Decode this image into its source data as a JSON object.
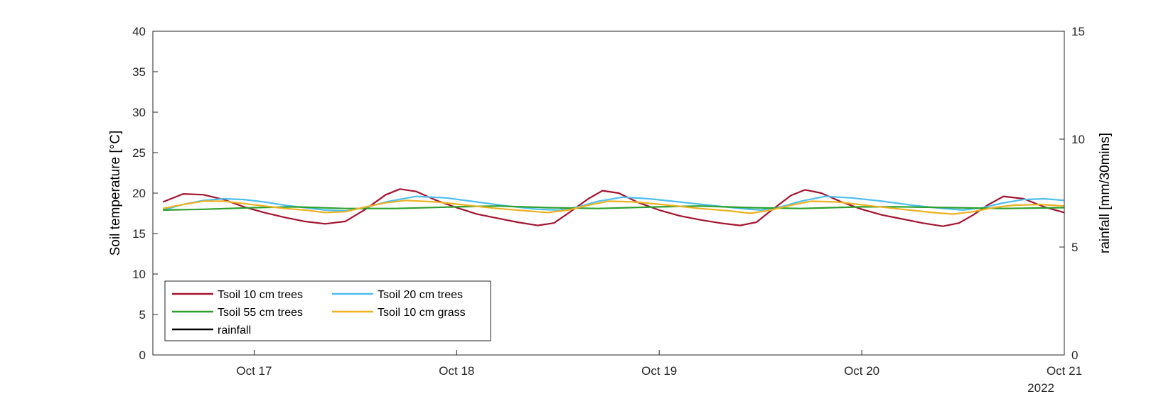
{
  "chart_data": {
    "type": "line",
    "ylabel_left": "Soil temperature [°C]",
    "ylabel_right": "rainfall [mm/30mins]",
    "ylim_left": [
      0,
      40
    ],
    "ylim_right": [
      0,
      15
    ],
    "yticks_left": [
      0,
      5,
      10,
      15,
      20,
      25,
      30,
      35,
      40
    ],
    "yticks_right": [
      0,
      5,
      10,
      15
    ],
    "xlim": [
      -0.5,
      4.0
    ],
    "xticks": [
      {
        "x": 0,
        "label": "Oct 17"
      },
      {
        "x": 1,
        "label": "Oct 18"
      },
      {
        "x": 2,
        "label": "Oct 19"
      },
      {
        "x": 3,
        "label": "Oct 20"
      },
      {
        "x": 4,
        "label": "Oct 21"
      }
    ],
    "x_secondary_label": "2022",
    "grid": false,
    "legend_position": "bottom-left",
    "series": [
      {
        "name": "Tsoil 10 cm trees",
        "color": "#A2142F",
        "points": [
          [
            -0.45,
            18.9
          ],
          [
            -0.35,
            19.9
          ],
          [
            -0.25,
            19.8
          ],
          [
            -0.15,
            19.2
          ],
          [
            -0.05,
            18.3
          ],
          [
            0.05,
            17.6
          ],
          [
            0.15,
            17.0
          ],
          [
            0.25,
            16.5
          ],
          [
            0.35,
            16.2
          ],
          [
            0.45,
            16.5
          ],
          [
            0.55,
            18.0
          ],
          [
            0.65,
            19.8
          ],
          [
            0.72,
            20.5
          ],
          [
            0.8,
            20.2
          ],
          [
            0.9,
            19.1
          ],
          [
            1.0,
            18.2
          ],
          [
            1.1,
            17.4
          ],
          [
            1.2,
            16.9
          ],
          [
            1.3,
            16.4
          ],
          [
            1.4,
            16.0
          ],
          [
            1.48,
            16.3
          ],
          [
            1.55,
            17.5
          ],
          [
            1.65,
            19.3
          ],
          [
            1.72,
            20.3
          ],
          [
            1.8,
            20.0
          ],
          [
            1.9,
            18.8
          ],
          [
            2.0,
            17.9
          ],
          [
            2.1,
            17.2
          ],
          [
            2.2,
            16.7
          ],
          [
            2.3,
            16.3
          ],
          [
            2.4,
            16.0
          ],
          [
            2.48,
            16.4
          ],
          [
            2.55,
            17.8
          ],
          [
            2.65,
            19.7
          ],
          [
            2.72,
            20.4
          ],
          [
            2.8,
            20.0
          ],
          [
            2.9,
            18.9
          ],
          [
            3.0,
            18.0
          ],
          [
            3.1,
            17.3
          ],
          [
            3.2,
            16.8
          ],
          [
            3.3,
            16.3
          ],
          [
            3.4,
            15.9
          ],
          [
            3.48,
            16.3
          ],
          [
            3.55,
            17.3
          ],
          [
            3.62,
            18.5
          ],
          [
            3.7,
            19.6
          ],
          [
            3.8,
            19.3
          ],
          [
            3.9,
            18.3
          ],
          [
            4.0,
            17.6
          ]
        ]
      },
      {
        "name": "Tsoil 20 cm trees",
        "color": "#4DBEEE",
        "points": [
          [
            -0.45,
            17.9
          ],
          [
            -0.35,
            18.6
          ],
          [
            -0.25,
            19.1
          ],
          [
            -0.15,
            19.3
          ],
          [
            -0.05,
            19.2
          ],
          [
            0.05,
            18.9
          ],
          [
            0.15,
            18.5
          ],
          [
            0.25,
            18.2
          ],
          [
            0.35,
            17.9
          ],
          [
            0.45,
            17.8
          ],
          [
            0.55,
            18.2
          ],
          [
            0.65,
            18.9
          ],
          [
            0.8,
            19.6
          ],
          [
            0.95,
            19.4
          ],
          [
            1.1,
            18.9
          ],
          [
            1.25,
            18.4
          ],
          [
            1.4,
            18.0
          ],
          [
            1.5,
            17.9
          ],
          [
            1.6,
            18.3
          ],
          [
            1.7,
            19.0
          ],
          [
            1.82,
            19.5
          ],
          [
            1.95,
            19.3
          ],
          [
            2.1,
            18.9
          ],
          [
            2.25,
            18.5
          ],
          [
            2.4,
            18.1
          ],
          [
            2.5,
            17.9
          ],
          [
            2.6,
            18.3
          ],
          [
            2.7,
            19.0
          ],
          [
            2.82,
            19.6
          ],
          [
            2.95,
            19.4
          ],
          [
            3.1,
            19.0
          ],
          [
            3.25,
            18.5
          ],
          [
            3.4,
            18.1
          ],
          [
            3.5,
            17.9
          ],
          [
            3.6,
            18.2
          ],
          [
            3.7,
            18.8
          ],
          [
            3.8,
            19.2
          ],
          [
            3.9,
            19.3
          ],
          [
            4.0,
            19.1
          ]
        ]
      },
      {
        "name": "Tsoil 55 cm trees",
        "color": "#2CA02C",
        "points": [
          [
            -0.45,
            17.9
          ],
          [
            -0.25,
            18.0
          ],
          [
            0.0,
            18.2
          ],
          [
            0.2,
            18.3
          ],
          [
            0.45,
            18.1
          ],
          [
            0.7,
            18.1
          ],
          [
            1.0,
            18.3
          ],
          [
            1.2,
            18.4
          ],
          [
            1.45,
            18.2
          ],
          [
            1.7,
            18.1
          ],
          [
            2.0,
            18.3
          ],
          [
            2.2,
            18.4
          ],
          [
            2.45,
            18.2
          ],
          [
            2.7,
            18.1
          ],
          [
            3.0,
            18.3
          ],
          [
            3.2,
            18.3
          ],
          [
            3.45,
            18.2
          ],
          [
            3.7,
            18.1
          ],
          [
            4.0,
            18.2
          ]
        ]
      },
      {
        "name": "Tsoil 10 cm grass",
        "color": "#EDB120",
        "points": [
          [
            -0.45,
            18.1
          ],
          [
            -0.35,
            18.6
          ],
          [
            -0.25,
            19.0
          ],
          [
            -0.15,
            19.0
          ],
          [
            -0.05,
            18.7
          ],
          [
            0.05,
            18.4
          ],
          [
            0.15,
            18.1
          ],
          [
            0.25,
            17.9
          ],
          [
            0.35,
            17.6
          ],
          [
            0.45,
            17.7
          ],
          [
            0.55,
            18.3
          ],
          [
            0.65,
            18.8
          ],
          [
            0.75,
            19.1
          ],
          [
            0.9,
            18.9
          ],
          [
            1.05,
            18.5
          ],
          [
            1.2,
            18.1
          ],
          [
            1.35,
            17.8
          ],
          [
            1.45,
            17.6
          ],
          [
            1.55,
            17.9
          ],
          [
            1.65,
            18.5
          ],
          [
            1.75,
            19.0
          ],
          [
            1.88,
            18.9
          ],
          [
            2.05,
            18.5
          ],
          [
            2.2,
            18.1
          ],
          [
            2.35,
            17.8
          ],
          [
            2.45,
            17.5
          ],
          [
            2.55,
            17.9
          ],
          [
            2.65,
            18.5
          ],
          [
            2.75,
            19.0
          ],
          [
            2.88,
            18.9
          ],
          [
            3.05,
            18.4
          ],
          [
            3.2,
            18.0
          ],
          [
            3.35,
            17.6
          ],
          [
            3.45,
            17.4
          ],
          [
            3.55,
            17.7
          ],
          [
            3.65,
            18.2
          ],
          [
            3.75,
            18.5
          ],
          [
            3.88,
            18.6
          ],
          [
            4.0,
            18.4
          ]
        ]
      },
      {
        "name": "rainfall",
        "color": "#000000",
        "axis": "right",
        "points": []
      }
    ]
  }
}
